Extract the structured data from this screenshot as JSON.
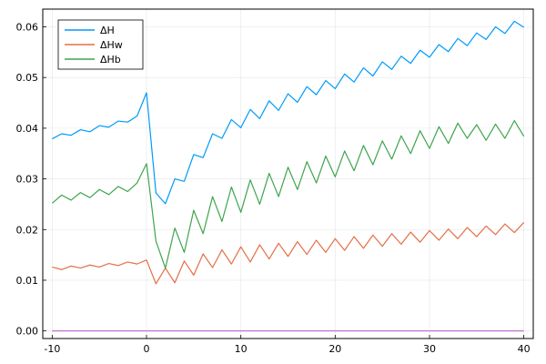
{
  "chart_data": {
    "type": "line",
    "title": "",
    "xlabel": "",
    "ylabel": "",
    "xlim": [
      -11,
      41
    ],
    "ylim": [
      -0.0015,
      0.0635
    ],
    "xticks": [
      -10,
      0,
      10,
      20,
      30,
      40
    ],
    "yticks": [
      0.0,
      0.01,
      0.02,
      0.03,
      0.04,
      0.05,
      0.06
    ],
    "ytick_labels": [
      "0.00",
      "0.01",
      "0.02",
      "0.03",
      "0.04",
      "0.05",
      "0.06"
    ],
    "grid": true,
    "legend_position": "top-left",
    "x": [
      -10,
      -9,
      -8,
      -7,
      -6,
      -5,
      -4,
      -3,
      -2,
      -1,
      0,
      1,
      2,
      3,
      4,
      5,
      6,
      7,
      8,
      9,
      10,
      11,
      12,
      13,
      14,
      15,
      16,
      17,
      18,
      19,
      20,
      21,
      22,
      23,
      24,
      25,
      26,
      27,
      28,
      29,
      30,
      31,
      32,
      33,
      34,
      35,
      36,
      37,
      38,
      39,
      40
    ],
    "series": [
      {
        "name": "ΔH",
        "color": "#009AFA",
        "values": [
          0.0379,
          0.0389,
          0.0386,
          0.0397,
          0.0393,
          0.0405,
          0.0402,
          0.0414,
          0.0412,
          0.0424,
          0.047,
          0.0272,
          0.0251,
          0.03,
          0.0295,
          0.0348,
          0.0342,
          0.0389,
          0.038,
          0.0417,
          0.0401,
          0.0437,
          0.0419,
          0.0454,
          0.0435,
          0.0468,
          0.0451,
          0.0482,
          0.0466,
          0.0494,
          0.0478,
          0.0507,
          0.0491,
          0.0519,
          0.0503,
          0.0531,
          0.0516,
          0.0542,
          0.0528,
          0.0554,
          0.054,
          0.0565,
          0.0551,
          0.0577,
          0.0563,
          0.0588,
          0.0575,
          0.06,
          0.0587,
          0.0611,
          0.0599
        ]
      },
      {
        "name": "ΔHw",
        "color": "#E36F47",
        "values": [
          0.0126,
          0.0121,
          0.0128,
          0.0124,
          0.013,
          0.0126,
          0.0133,
          0.0129,
          0.0136,
          0.0132,
          0.014,
          0.0093,
          0.0124,
          0.0095,
          0.0138,
          0.011,
          0.0152,
          0.0125,
          0.016,
          0.0132,
          0.0166,
          0.0136,
          0.017,
          0.0142,
          0.0173,
          0.0147,
          0.0176,
          0.0151,
          0.0179,
          0.0155,
          0.0182,
          0.0159,
          0.0186,
          0.0163,
          0.0189,
          0.0167,
          0.0192,
          0.0171,
          0.0195,
          0.0175,
          0.0198,
          0.0179,
          0.0201,
          0.0182,
          0.0204,
          0.0186,
          0.0207,
          0.019,
          0.0211,
          0.0194,
          0.0214
        ]
      },
      {
        "name": "ΔHb",
        "color": "#3EA44E",
        "values": [
          0.0252,
          0.0268,
          0.0258,
          0.0273,
          0.0263,
          0.0279,
          0.0269,
          0.0285,
          0.0275,
          0.0292,
          0.033,
          0.0177,
          0.0124,
          0.0203,
          0.0155,
          0.0238,
          0.0192,
          0.0265,
          0.0216,
          0.0284,
          0.0234,
          0.0298,
          0.025,
          0.0311,
          0.0265,
          0.0323,
          0.0279,
          0.0334,
          0.0292,
          0.0345,
          0.0304,
          0.0355,
          0.0316,
          0.0366,
          0.0328,
          0.0375,
          0.0339,
          0.0385,
          0.035,
          0.0395,
          0.036,
          0.0403,
          0.037,
          0.041,
          0.038,
          0.0407,
          0.0376,
          0.0408,
          0.038,
          0.0415,
          0.0384
        ]
      },
      {
        "name": "",
        "color": "#C271D2",
        "values": [
          0,
          0,
          0,
          0,
          0,
          0,
          0,
          0,
          0,
          0,
          0,
          0,
          0,
          0,
          0,
          0,
          0,
          0,
          0,
          0,
          0,
          0,
          0,
          0,
          0,
          0,
          0,
          0,
          0,
          0,
          0,
          0,
          0,
          0,
          0,
          0,
          0,
          0,
          0,
          0,
          0,
          0,
          0,
          0,
          0,
          0,
          0,
          0,
          0,
          0,
          0
        ]
      }
    ]
  }
}
